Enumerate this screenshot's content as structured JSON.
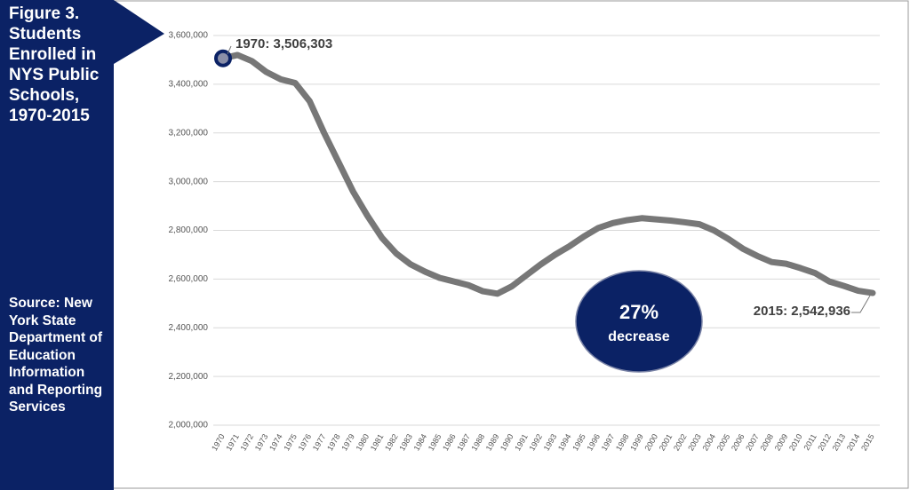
{
  "chart_data": {
    "type": "line",
    "title": "Figure 3. Students Enrolled in NYS Public Schools, 1970-2015",
    "source": "Source: New York State Department of Education Information and Reporting Services",
    "categories": [
      "1970",
      "1971",
      "1972",
      "1973",
      "1974",
      "1975",
      "1976",
      "1977",
      "1978",
      "1979",
      "1980",
      "1981",
      "1982",
      "1983",
      "1984",
      "1985",
      "1986",
      "1987",
      "1988",
      "1989",
      "1990",
      "1991",
      "1992",
      "1993",
      "1994",
      "1995",
      "1996",
      "1997",
      "1998",
      "1999",
      "2000",
      "2001",
      "2002",
      "2003",
      "2004",
      "2005",
      "2006",
      "2007",
      "2008",
      "2009",
      "2010",
      "2011",
      "2012",
      "2013",
      "2014",
      "2015"
    ],
    "series": [
      {
        "name": "Students Enrolled",
        "color": "#777777",
        "values": [
          3506303,
          3520000,
          3495000,
          3450000,
          3420000,
          3405000,
          3330000,
          3200000,
          3080000,
          2960000,
          2860000,
          2770000,
          2705000,
          2660000,
          2630000,
          2605000,
          2590000,
          2575000,
          2550000,
          2540000,
          2570000,
          2615000,
          2660000,
          2700000,
          2735000,
          2775000,
          2810000,
          2830000,
          2842000,
          2850000,
          2845000,
          2840000,
          2833000,
          2825000,
          2800000,
          2765000,
          2725000,
          2695000,
          2670000,
          2663000,
          2645000,
          2625000,
          2590000,
          2572000,
          2552000,
          2542936
        ]
      }
    ],
    "ylim": [
      2000000,
      3600000
    ],
    "yticks": [
      {
        "value": 2000000,
        "label": "2,000,000"
      },
      {
        "value": 2200000,
        "label": "2,200,000"
      },
      {
        "value": 2400000,
        "label": "2,400,000"
      },
      {
        "value": 2600000,
        "label": "2,600,000"
      },
      {
        "value": 2800000,
        "label": "2,800,000"
      },
      {
        "value": 3000000,
        "label": "3,000,000"
      },
      {
        "value": 3200000,
        "label": "3,200,000"
      },
      {
        "value": 3400000,
        "label": "3,400,000"
      },
      {
        "value": 3600000,
        "label": "3,600,000"
      }
    ],
    "grid": true,
    "annotations": [
      "1970: 3,506,303",
      "2015: 2,542,936",
      "27%",
      "decrease"
    ]
  }
}
